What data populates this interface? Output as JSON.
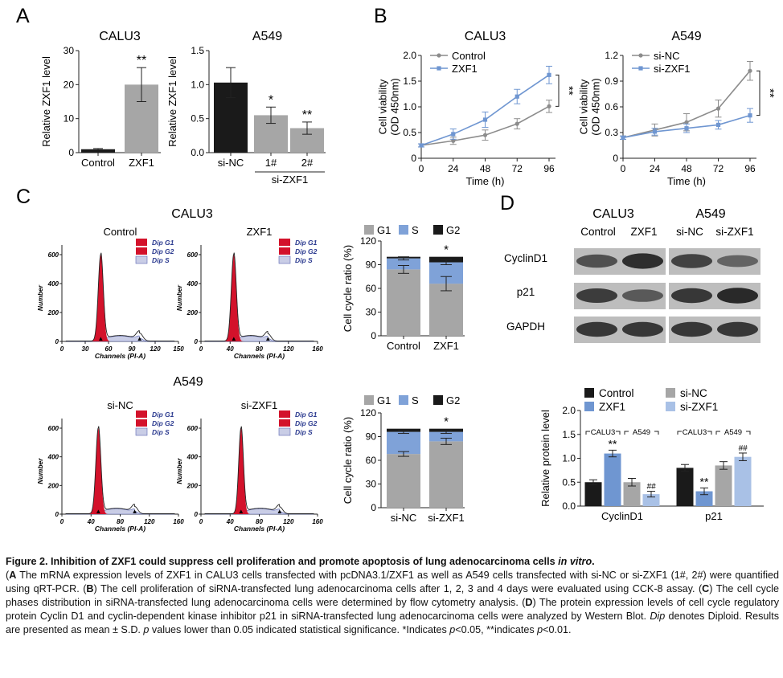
{
  "panel_labels": {
    "A": "A",
    "B": "B",
    "C": "C",
    "D": "D"
  },
  "colors": {
    "black": "#1a1a1a",
    "gray": "#a6a6a6",
    "blue": "#6f96d1",
    "lightblue": "#a9c1e6",
    "red": "#d3122b",
    "g1": "#a6a6a6",
    "s": "#7fa2d8",
    "g2": "#1a1a1a"
  },
  "flow_common": {
    "legend": [
      "Dip G1",
      "Dip G2",
      "Dip S"
    ],
    "xlabel": "Channels (PI-A)",
    "ylabel": "Number"
  },
  "panel_c_titles": {
    "top": "CALU3",
    "bottom": "A549"
  },
  "panel_d_top": {
    "cell_lines": [
      "CALU3",
      "A549"
    ],
    "conditions": [
      "Control",
      "ZXF1",
      "si-NC",
      "si-ZXF1"
    ],
    "proteins": [
      "CyclinD1",
      "p21",
      "GAPDH"
    ]
  },
  "chart_data": [
    {
      "id": "A-CALU3",
      "type": "bar",
      "title": "CALU3",
      "ylabel": "Relative ZXF1 level",
      "categories": [
        "Control",
        "ZXF1"
      ],
      "values": [
        1,
        20
      ],
      "errors": [
        0.2,
        5
      ],
      "colors": [
        "#1a1a1a",
        "#a6a6a6"
      ],
      "annotations": [
        "",
        "**"
      ],
      "ylim": [
        0,
        30
      ],
      "yticks": [
        "0",
        "10",
        "20",
        "30"
      ]
    },
    {
      "id": "A-A549",
      "type": "bar",
      "title": "A549",
      "ylabel": "Relative ZXF1 level",
      "categories": [
        "si-NC",
        "1#",
        "2#"
      ],
      "values": [
        1.03,
        0.55,
        0.36
      ],
      "errors": [
        0.22,
        0.12,
        0.09
      ],
      "colors": [
        "#1a1a1a",
        "#a6a6a6",
        "#a6a6a6"
      ],
      "annotations": [
        "",
        "*",
        "**"
      ],
      "group_label": "si-ZXF1",
      "ylim": [
        0,
        1.5
      ],
      "yticks": [
        "0.0",
        "0.5",
        "1.0",
        "1.5"
      ]
    },
    {
      "id": "B-CALU3",
      "type": "line",
      "title": "CALU3",
      "ylabel": "Cell viability\n(OD 450nm)",
      "xlabel": "Time (h)",
      "x": [
        0,
        24,
        48,
        72,
        96
      ],
      "series": [
        {
          "name": "Control",
          "values": [
            0.25,
            0.34,
            0.45,
            0.67,
            1.01
          ],
          "errors": [
            0.03,
            0.07,
            0.1,
            0.1,
            0.12
          ],
          "color": "#8c8c8c"
        },
        {
          "name": "ZXF1",
          "values": [
            0.25,
            0.47,
            0.75,
            1.2,
            1.62
          ],
          "errors": [
            0.03,
            0.1,
            0.15,
            0.14,
            0.17
          ],
          "color": "#6f96d1"
        }
      ],
      "significance": "**",
      "ylim": [
        0,
        2.0
      ],
      "yticks": [
        "0",
        "0.5",
        "1.0",
        "1.5",
        "2.0"
      ],
      "xticks": [
        "0",
        "24",
        "48",
        "72",
        "96"
      ]
    },
    {
      "id": "B-A549",
      "type": "line",
      "title": "A549",
      "ylabel": "Cell viability\n(OD 450nm)",
      "xlabel": "Time (h)",
      "x": [
        0,
        24,
        48,
        72,
        96
      ],
      "series": [
        {
          "name": "si-NC",
          "values": [
            0.24,
            0.33,
            0.42,
            0.58,
            1.02
          ],
          "errors": [
            0.02,
            0.07,
            0.1,
            0.1,
            0.11
          ],
          "color": "#8c8c8c"
        },
        {
          "name": "si-ZXF1",
          "values": [
            0.24,
            0.31,
            0.35,
            0.39,
            0.5
          ],
          "errors": [
            0.02,
            0.04,
            0.05,
            0.05,
            0.08
          ],
          "color": "#6f96d1"
        }
      ],
      "significance": "**",
      "ylim": [
        0,
        1.2
      ],
      "yticks": [
        "0",
        "0.3",
        "0.6",
        "0.9",
        "1.2"
      ],
      "xticks": [
        "0",
        "24",
        "48",
        "72",
        "96"
      ]
    },
    {
      "id": "C-CALU3-hist",
      "type": "area",
      "title": "Control",
      "peaks": [
        {
          "center": 50,
          "height": 600,
          "width": 3.2
        },
        {
          "center": 100,
          "height": 55,
          "width": 4
        }
      ],
      "xticks": [
        "0",
        "30",
        "60",
        "90",
        "120",
        "150"
      ],
      "yticks": [
        "0",
        "200",
        "400",
        "600"
      ]
    },
    {
      "id": "C-CALU3-hist2",
      "type": "area",
      "title": "ZXF1",
      "peaks": [
        {
          "center": 45,
          "height": 600,
          "width": 3.4
        },
        {
          "center": 92,
          "height": 50,
          "width": 4
        }
      ],
      "xticks": [
        "0",
        "40",
        "80",
        "120",
        "160"
      ],
      "yticks": [
        "0",
        "200",
        "400",
        "600"
      ]
    },
    {
      "id": "C-CALU3-stack",
      "type": "bar",
      "stacked": true,
      "ylabel": "Cell cycle ratio (%)",
      "categories": [
        "Control",
        "ZXF1"
      ],
      "series": [
        {
          "name": "G1",
          "values": [
            84,
            66
          ],
          "color": "#a6a6a6"
        },
        {
          "name": "S",
          "values": [
            14,
            27
          ],
          "color": "#7fa2d8"
        },
        {
          "name": "G2",
          "values": [
            2,
            7
          ],
          "color": "#1a1a1a"
        }
      ],
      "errors_top": [
        2,
        3
      ],
      "errors_mid": [
        5,
        9
      ],
      "annotations": [
        "",
        "*"
      ],
      "ylim": [
        0,
        120
      ],
      "yticks": [
        "0",
        "30",
        "60",
        "90",
        "120"
      ]
    },
    {
      "id": "C-A549-hist",
      "type": "area",
      "title": "si-NC",
      "peaks": [
        {
          "center": 50,
          "height": 600,
          "width": 3.4
        },
        {
          "center": 100,
          "height": 50,
          "width": 4
        }
      ],
      "xticks": [
        "0",
        "40",
        "80",
        "120",
        "160"
      ],
      "yticks": [
        "0",
        "200",
        "400",
        "600"
      ]
    },
    {
      "id": "C-A549-hist2",
      "type": "area",
      "title": "si-ZXF1",
      "peaks": [
        {
          "center": 55,
          "height": 600,
          "width": 3.2
        },
        {
          "center": 108,
          "height": 48,
          "width": 4
        }
      ],
      "xticks": [
        "0",
        "40",
        "80",
        "120",
        "160"
      ],
      "yticks": [
        "0",
        "200",
        "400",
        "600"
      ]
    },
    {
      "id": "C-A549-stack",
      "type": "bar",
      "stacked": true,
      "ylabel": "Cell cycle ratio (%)",
      "categories": [
        "si-NC",
        "si-ZXF1"
      ],
      "series": [
        {
          "name": "G1",
          "values": [
            68,
            84
          ],
          "color": "#a6a6a6"
        },
        {
          "name": "S",
          "values": [
            28,
            12
          ],
          "color": "#7fa2d8"
        },
        {
          "name": "G2",
          "values": [
            4,
            4
          ],
          "color": "#1a1a1a"
        }
      ],
      "errors_top": [
        2,
        2
      ],
      "errors_mid": [
        3,
        4
      ],
      "annotations": [
        "",
        "*"
      ],
      "ylim": [
        0,
        120
      ],
      "yticks": [
        "0",
        "30",
        "60",
        "90",
        "120"
      ]
    },
    {
      "id": "D-bar",
      "type": "bar",
      "ylabel": "Relative protein level",
      "categories": [
        "CyclinD1",
        "p21"
      ],
      "group_labels": [
        "CALU3",
        "A549"
      ],
      "series": [
        {
          "name": "Control",
          "values": [
            0.5,
            0.8
          ],
          "errors": [
            0.05,
            0.07
          ],
          "color": "#1a1a1a"
        },
        {
          "name": "ZXF1",
          "values": [
            1.1,
            0.31
          ],
          "errors": [
            0.07,
            0.07
          ],
          "color": "#6f96d1"
        },
        {
          "name": "si-NC",
          "values": [
            0.5,
            0.85
          ],
          "errors": [
            0.08,
            0.08
          ],
          "color": "#a6a6a6"
        },
        {
          "name": "si-ZXF1",
          "values": [
            0.25,
            1.03
          ],
          "errors": [
            0.06,
            0.08
          ],
          "color": "#a9c1e6"
        }
      ],
      "annotations": {
        "ZXF1": [
          "**",
          "**"
        ],
        "si-ZXF1": [
          "##",
          "##"
        ]
      },
      "ylim": [
        0,
        2.0
      ],
      "yticks": [
        "0.0",
        "0.5",
        "1.0",
        "1.5",
        "2.0"
      ]
    }
  ],
  "caption": {
    "title": "Figure 2. Inhibition of ZXF1 could suppress cell proliferation and promote apoptosis of lung adenocarcinoma cells ",
    "title_italic": "in vitro",
    "title_end": ".",
    "a_label": "A",
    "a_text": " The mRNA expression levels of ZXF1 in CALU3 cells transfected with pcDNA3.1/ZXF1 as well as A549 cells transfected with si-NC or si-ZXF1 (1#, 2#) were quantified using qRT-PCR. (",
    "b_label": "B",
    "b_text": ") The cell proliferation of siRNA-transfected lung adenocarcinoma cells after 1, 2, 3 and 4 days were evaluated using CCK-8 assay. (",
    "c_label": "C",
    "c_text": ") The cell cycle phases distribution in siRNA-transfected lung adenocarcinoma cells were determined by flow cytometry analysis. (",
    "d_label": "D",
    "d_text": ") The protein expression levels of cell cycle regulatory protein Cyclin D1 and cyclin-dependent kinase inhibitor p21 in siRNA-transfected lung adenocarcinoma cells were analyzed by Western Blot. ",
    "dip_italic": "Dip",
    "dip_text": " denotes Diploid. Results are presented as mean ± S.D. ",
    "p_italic": "p",
    "p_text": " values lower than 0.05 indicated statistical significance. *Indicates ",
    "p1": "p",
    "p1_text": "<0.05, **indicates ",
    "p2": "p",
    "p2_text": "<0.01."
  }
}
